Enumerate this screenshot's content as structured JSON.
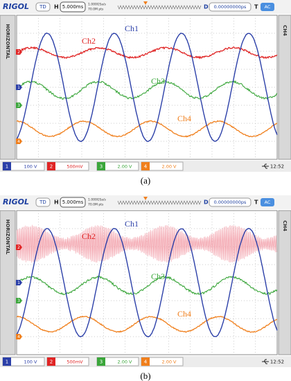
{
  "panels": [
    {
      "caption": "(a)",
      "header": {
        "brand": "RIGOL",
        "mode": "TD",
        "h_label": "H",
        "timebase": "5.000ms",
        "sample_rate": "1.000GSa/s",
        "memory": "70.0M pts",
        "d_label": "D",
        "delay": "0.00000000ps",
        "t_label": "T",
        "trigger": "AC"
      },
      "side_left": "HORIZONTAL",
      "side_right": "CH4",
      "traces": [
        {
          "label": "Ch1"
        },
        {
          "label": "Ch2"
        },
        {
          "label": "Ch3"
        },
        {
          "label": "Ch4"
        }
      ],
      "channels": [
        {
          "number": "1",
          "scale": "100 V"
        },
        {
          "number": "2",
          "scale": "500mV"
        },
        {
          "number": "3",
          "scale": "2.00 V"
        },
        {
          "number": "4",
          "scale": "2.00 V"
        }
      ],
      "time": "12:52"
    },
    {
      "caption": "(b)",
      "header": {
        "brand": "RIGOL",
        "mode": "TD",
        "h_label": "H",
        "timebase": "5.000ms",
        "sample_rate": "1.000GSa/s",
        "memory": "70.0M pts",
        "d_label": "D",
        "delay": "0.00000000ps",
        "t_label": "T",
        "trigger": "AC"
      },
      "side_left": "HORIZONTAL",
      "side_right": "CH4",
      "traces": [
        {
          "label": "Ch1"
        },
        {
          "label": "Ch2"
        },
        {
          "label": "Ch3"
        },
        {
          "label": "Ch4"
        }
      ],
      "channels": [
        {
          "number": "1",
          "scale": "100 V"
        },
        {
          "number": "2",
          "scale": "500mV"
        },
        {
          "number": "3",
          "scale": "2.00 V"
        },
        {
          "number": "4",
          "scale": "2.00 V"
        }
      ],
      "time": "12:52"
    }
  ]
}
